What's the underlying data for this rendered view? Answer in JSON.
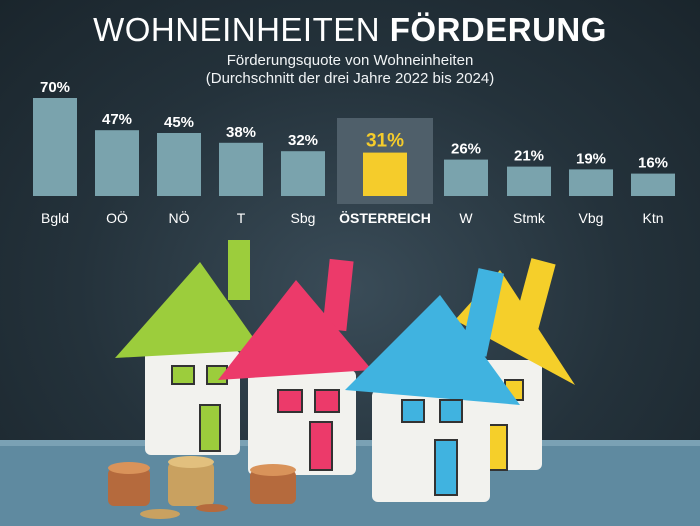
{
  "header": {
    "title_light": "WOHNEINHEITEN",
    "title_bold": "FÖRDERUNG",
    "subtitle_line1": "Förderungsquote von Wohneinheiten",
    "subtitle_line2": "(Durchschnitt der drei Jahre 2022 bis 2024)"
  },
  "chart_data": {
    "type": "bar",
    "title": "WOHNEINHEITEN FÖRDERUNG",
    "subtitle": "Förderungsquote von Wohneinheiten (Durchschnitt der drei Jahre 2022 bis 2024)",
    "categories": [
      "Bgld",
      "OÖ",
      "NÖ",
      "T",
      "Sbg",
      "ÖSTERREICH",
      "W",
      "Stmk",
      "Vbg",
      "Ktn"
    ],
    "values": [
      70,
      47,
      45,
      38,
      32,
      31,
      26,
      21,
      19,
      16
    ],
    "value_labels": [
      "70%",
      "47%",
      "45%",
      "38%",
      "32%",
      "31%",
      "26%",
      "21%",
      "19%",
      "16%"
    ],
    "highlight_category": "ÖSTERREICH",
    "unit": "%",
    "ylim": [
      0,
      70
    ],
    "grid": false,
    "colors": {
      "bar": "#7aa3ad",
      "highlight_bar": "#f5cc2b",
      "highlight_panel": "#4f5f6a"
    }
  },
  "background": {
    "scene": "paper-houses-with-coins",
    "house_colors": [
      "#9ccd3c",
      "#ec3a6a",
      "#40b3e0",
      "#f5cf2a"
    ]
  }
}
